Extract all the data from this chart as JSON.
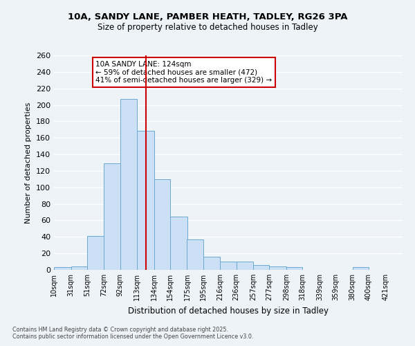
{
  "title_line1": "10A, SANDY LANE, PAMBER HEATH, TADLEY, RG26 3PA",
  "title_line2": "Size of property relative to detached houses in Tadley",
  "xlabel": "Distribution of detached houses by size in Tadley",
  "ylabel": "Number of detached properties",
  "bin_labels": [
    "10sqm",
    "31sqm",
    "51sqm",
    "72sqm",
    "92sqm",
    "113sqm",
    "134sqm",
    "154sqm",
    "175sqm",
    "195sqm",
    "216sqm",
    "236sqm",
    "257sqm",
    "277sqm",
    "298sqm",
    "318sqm",
    "339sqm",
    "359sqm",
    "380sqm",
    "400sqm",
    "421sqm"
  ],
  "bin_edges": [
    10,
    31,
    51,
    72,
    92,
    113,
    134,
    154,
    175,
    195,
    216,
    236,
    257,
    277,
    298,
    318,
    339,
    359,
    380,
    400,
    421
  ],
  "bar_heights": [
    3,
    4,
    41,
    129,
    207,
    169,
    110,
    65,
    37,
    16,
    10,
    10,
    6,
    4,
    3,
    0,
    0,
    0,
    3,
    0,
    0
  ],
  "bar_facecolor": "#cce0f5",
  "bar_edgecolor": "#6aaad4",
  "vline_x": 124,
  "vline_color": "#cc0000",
  "ylim": [
    0,
    260
  ],
  "yticks": [
    0,
    20,
    40,
    60,
    80,
    100,
    120,
    140,
    160,
    180,
    200,
    220,
    240,
    260
  ],
  "bg_color": "#eef3f8",
  "grid_color": "#ffffff",
  "annotation_title": "10A SANDY LANE: 124sqm",
  "annotation_line1": "← 59% of detached houses are smaller (472)",
  "annotation_line2": "41% of semi-detached houses are larger (329) →",
  "annotation_box_color": "#ffffff",
  "annotation_box_edge": "#cc0000",
  "footnote1": "Contains HM Land Registry data © Crown copyright and database right 2025.",
  "footnote2": "Contains public sector information licensed under the Open Government Licence v3.0."
}
